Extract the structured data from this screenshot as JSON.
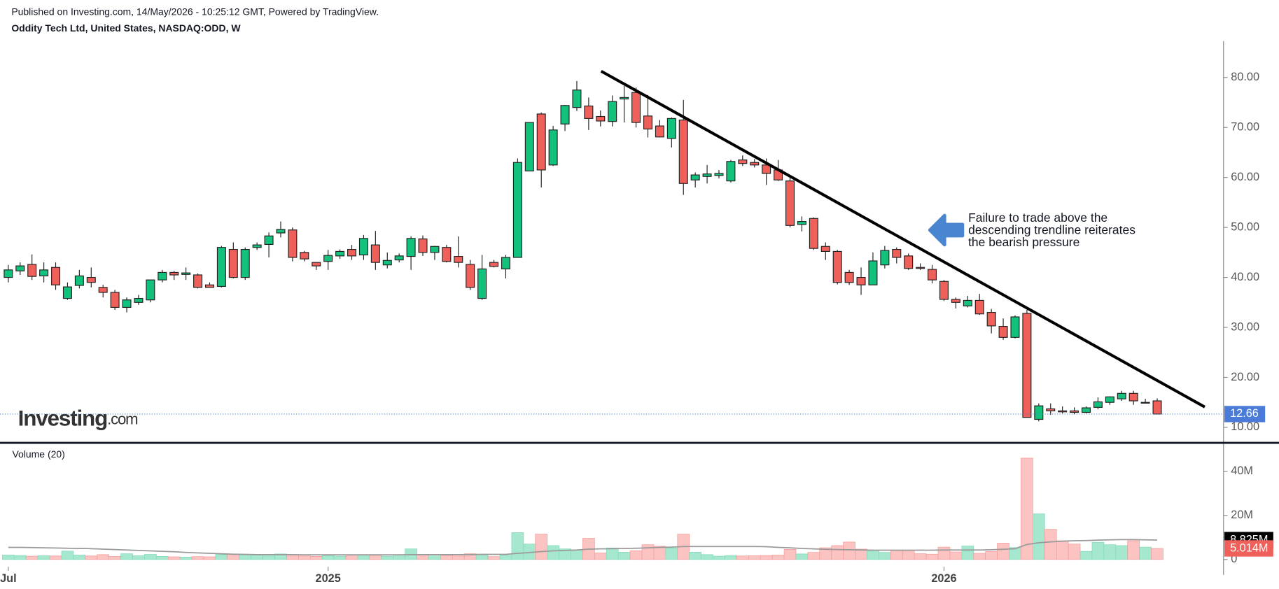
{
  "header": {
    "published": "Published on Investing.com, 14/May/2026 - 10:25:12 GMT, Powered by TradingView.",
    "symbol": "Oddity Tech Ltd, United States, NASDAQ:ODD, W"
  },
  "watermark": {
    "brand": "Investing",
    "suffix": ".com"
  },
  "annotation": [
    "Failure to trade above the",
    "descending trendline reiterates",
    "the bearish pressure"
  ],
  "chart_data": [
    {
      "type": "candlestick",
      "up_color": "#12c27c",
      "down_color": "#f0605a",
      "open": [
        40,
        41.3,
        42.6,
        40.3,
        42,
        35.8,
        38.4,
        40,
        38,
        37,
        34,
        35,
        35.5,
        39.5,
        41,
        40.6,
        40.5,
        38.5,
        38.2,
        45.6,
        40,
        46,
        46.6,
        48.9,
        49.5,
        45,
        43,
        43.2,
        44.3,
        45.6,
        44.5,
        46.5,
        42.5,
        43.5,
        44.2,
        47.7,
        45,
        46,
        44.2,
        42.6,
        35.8,
        43,
        41.7,
        44,
        61.3,
        72.7,
        62.5,
        70.7,
        74,
        74.3,
        72.2,
        71.2,
        75.7,
        77,
        72.3,
        70.3,
        67.8,
        71.5,
        59.5,
        60.2,
        60.4,
        59.3,
        63.5,
        63,
        62.5,
        61.5,
        59.3,
        50.6,
        51.8,
        46.2,
        45.2,
        41,
        40,
        38.5,
        42.5,
        45.6,
        44.3,
        42,
        41.6,
        39.2,
        35.6,
        34.3,
        35.4,
        33,
        30.2,
        28,
        32.8,
        11.6,
        13.7,
        13.3,
        13.3,
        13,
        14,
        15,
        15.7,
        16.8,
        15,
        15.3
      ],
      "high": [
        42.5,
        43,
        44.6,
        43,
        43,
        39,
        41.5,
        42,
        38.5,
        37.5,
        36,
        36.5,
        39.5,
        41.5,
        41.3,
        42,
        40.8,
        39,
        46.3,
        47,
        46,
        47,
        49,
        51.2,
        50,
        45.3,
        43,
        45.5,
        45.6,
        46.5,
        48.5,
        49.3,
        45,
        44.8,
        48.2,
        48.4,
        46.3,
        46.5,
        48.2,
        43.5,
        44.5,
        43.5,
        44.5,
        63.8,
        71,
        73,
        70.3,
        74.5,
        79.3,
        76,
        73.4,
        76.4,
        78.3,
        78,
        76.5,
        71.5,
        72,
        75.5,
        61,
        62.5,
        61.5,
        63.5,
        64.4,
        63.7,
        63.8,
        63.5,
        60.5,
        52.2,
        52,
        47,
        45.5,
        41.5,
        42,
        45,
        46.3,
        46,
        44.8,
        42.8,
        42.5,
        39.5,
        36,
        36.3,
        36.7,
        33.7,
        31.8,
        32.4,
        33.5,
        14.8,
        14.8,
        14.2,
        14,
        14.2,
        16,
        16.2,
        17.3,
        17.3,
        15.7,
        15.8
      ],
      "low": [
        39,
        40.5,
        39.5,
        39,
        37.5,
        35.5,
        37.8,
        38,
        36,
        33.5,
        33,
        34.5,
        35,
        39,
        39.5,
        39.5,
        37.8,
        38,
        38,
        39.8,
        39.5,
        45.5,
        44,
        48,
        43.2,
        43.2,
        41.5,
        41.5,
        43.7,
        43.5,
        43.5,
        41.5,
        41.8,
        43,
        41.5,
        44.3,
        43.5,
        43,
        42,
        37.5,
        35.5,
        42,
        39.8,
        44,
        61.3,
        58,
        62.3,
        69.3,
        73.3,
        69.5,
        70.2,
        70.2,
        71,
        70,
        68,
        68,
        66,
        56.5,
        58,
        58.8,
        59.8,
        59,
        62.3,
        62,
        58.5,
        59.3,
        50,
        49.2,
        45.5,
        43.5,
        38.6,
        38.5,
        36.5,
        38.5,
        41.8,
        42.8,
        41.5,
        41.5,
        38.8,
        35.3,
        33.8,
        34,
        32.5,
        28.8,
        27.5,
        27.8,
        12,
        11.2,
        12.5,
        12.8,
        12.6,
        12.8,
        13.6,
        14.5,
        15.3,
        14.5,
        14.8,
        12.6
      ],
      "close": [
        41.5,
        42.3,
        40.2,
        41.5,
        38.5,
        38.1,
        40.3,
        39,
        37,
        34,
        35.5,
        35.8,
        39.5,
        41,
        40.5,
        40.9,
        38,
        38,
        46,
        40,
        45.6,
        46.5,
        48.3,
        49.6,
        44,
        43.7,
        42.3,
        44.4,
        45.2,
        44.3,
        47.8,
        43,
        43.4,
        44.3,
        47.8,
        45,
        46.2,
        43.2,
        43,
        38,
        41.7,
        42.2,
        44,
        63,
        71,
        61.5,
        69.5,
        74.4,
        77.5,
        71.8,
        71.3,
        75.2,
        76,
        71,
        69.7,
        68.1,
        71.8,
        58.8,
        60.5,
        60.7,
        60.8,
        63.2,
        62.8,
        62.5,
        60.8,
        59.5,
        50.4,
        51.2,
        45.8,
        45.2,
        39,
        39,
        38.5,
        43.3,
        45.4,
        44,
        41.8,
        41.8,
        39.5,
        35.6,
        35,
        35.4,
        32.7,
        30.3,
        28,
        32.1,
        12,
        14.3,
        13.3,
        13.1,
        13,
        13.9,
        15.1,
        16.1,
        16.8,
        15.3,
        15,
        12.66
      ],
      "xlim": [
        -0.7,
        102.6
      ],
      "ylim": [
        6.9,
        87.3
      ],
      "yticks": [
        {
          "value": 10,
          "label": "10.00"
        },
        {
          "value": 20,
          "label": "20.00"
        },
        {
          "value": 30,
          "label": "30.00"
        },
        {
          "value": 40,
          "label": "40.00"
        },
        {
          "value": 50,
          "label": "50.00"
        },
        {
          "value": 60,
          "label": "60.00"
        },
        {
          "value": 70,
          "label": "70.00"
        },
        {
          "value": 80,
          "label": "80.00"
        }
      ]
    },
    {
      "type": "bar",
      "title": "Volume (20)",
      "up_color": "#a6e8cf",
      "down_color": "#fbc3c1",
      "ma_color": "#9a9a9a",
      "values": [
        2,
        1.8,
        1.5,
        1.7,
        1.6,
        3.8,
        2,
        1.6,
        2.2,
        1.4,
        2.6,
        1.7,
        2.3,
        1.4,
        1.2,
        1.1,
        1.3,
        1.2,
        2.2,
        2.4,
        2.1,
        2.1,
        2,
        2.5,
        2.1,
        1.6,
        1.4,
        1.8,
        1.5,
        2,
        2.1,
        1.9,
        1.5,
        1.6,
        4.8,
        2.3,
        1.6,
        1.8,
        2.3,
        2.6,
        2.4,
        1.3,
        1.9,
        12.2,
        7,
        11.5,
        6.3,
        4.8,
        4.4,
        9.6,
        3,
        5.2,
        3.3,
        4,
        6.7,
        6,
        5.2,
        11.5,
        3.3,
        2.2,
        1.5,
        1.8,
        1.6,
        1.7,
        1.8,
        2,
        4.6,
        2.5,
        3.2,
        5.3,
        6.3,
        7.9,
        4.7,
        4.1,
        3.2,
        4.2,
        4.1,
        2.6,
        2.4,
        5.6,
        3.4,
        6.1,
        2.8,
        3.6,
        7.4,
        5.4,
        46,
        20.7,
        13.7,
        8.5,
        7,
        3.7,
        7.8,
        6.7,
        6.3,
        8.5,
        5.6,
        5.014
      ],
      "last_value_label": "5.014M",
      "ma_values": [
        5.5,
        5.5,
        5.4,
        5.3,
        5.2,
        5.1,
        5,
        4.9,
        4.7,
        4.5,
        4.3,
        4.1,
        3.9,
        3.7,
        3.5,
        3.2,
        3,
        2.8,
        2.6,
        2.4,
        2.3,
        2.2,
        2.2,
        2.2,
        2.2,
        2.1,
        2.1,
        2.1,
        2.1,
        2.1,
        2.1,
        2.1,
        2.1,
        2.1,
        2.2,
        2.2,
        2.2,
        2.2,
        2.2,
        2.2,
        2.3,
        2.3,
        2.3,
        2.8,
        3.1,
        3.6,
        3.9,
        4.1,
        4.3,
        4.7,
        4.8,
        4.9,
        5,
        5.1,
        5.3,
        5.5,
        5.6,
        5.9,
        5.9,
        5.9,
        5.9,
        5.9,
        5.9,
        5.9,
        5.8,
        5.5,
        5.3,
        5,
        4.8,
        4.6,
        4.5,
        4.4,
        4.3,
        4.2,
        4.2,
        4.2,
        4.2,
        4.2,
        4.2,
        4.3,
        4.3,
        4.3,
        4.3,
        4.4,
        4.6,
        4.9,
        6.8,
        7.6,
        8,
        8.3,
        8.5,
        8.6,
        8.8,
        8.9,
        9,
        9,
        8.9,
        8.825
      ],
      "ma_last_label": "8.825M",
      "xlim": [
        -0.7,
        102.6
      ],
      "ylim": [
        -3.3,
        52.2
      ],
      "yticks": [
        0,
        {
          "value": 20,
          "label": "20M"
        },
        {
          "value": 40,
          "label": "40M"
        }
      ],
      "xticks": [
        {
          "value": 0,
          "label": "Jul"
        },
        {
          "value": 27,
          "label": "2025"
        },
        {
          "value": 79,
          "label": "2026"
        }
      ]
    }
  ]
}
